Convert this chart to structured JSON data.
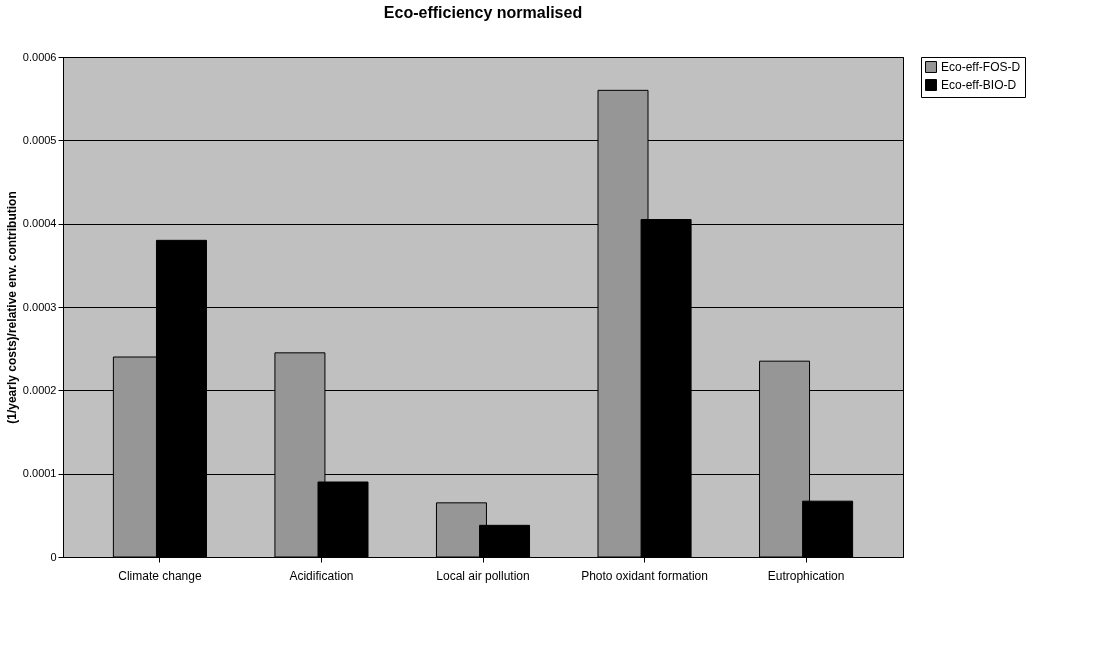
{
  "chart_data": {
    "type": "bar",
    "title": "Eco-efficiency normalised",
    "ylabel": "(1/yearly costs)/relative env. contribution",
    "categories": [
      "Climate change",
      "Acidification",
      "Local air pollution",
      "Photo oxidant formation",
      "Eutrophication"
    ],
    "series": [
      {
        "name": "Eco-eff-FOS-D",
        "color": "#969696",
        "values": [
          0.00024,
          0.000245,
          6.5e-05,
          0.00056,
          0.000235
        ]
      },
      {
        "name": "Eco-eff-BIO-D",
        "color": "#000000",
        "values": [
          0.00038,
          9e-05,
          3.8e-05,
          0.000405,
          6.7e-05
        ]
      }
    ],
    "ylim": [
      0,
      0.0006
    ],
    "yticks": [
      0,
      0.0001,
      0.0002,
      0.0003,
      0.0004,
      0.0005,
      0.0006
    ],
    "grid": "y",
    "legend": "right"
  }
}
